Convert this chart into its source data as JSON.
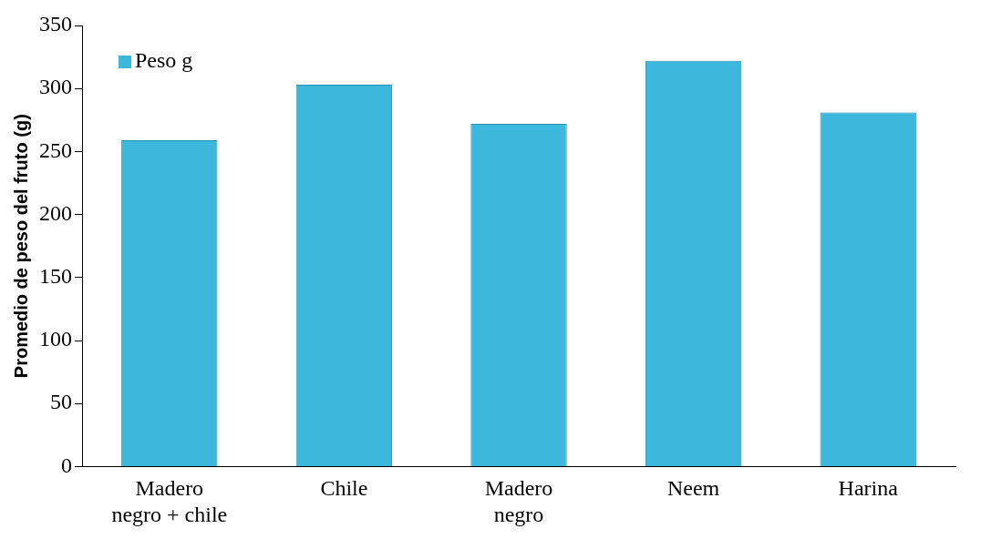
{
  "chart_data": {
    "type": "bar",
    "ylabel": "Promedio de peso del fruto (g)",
    "categories": [
      "Madero negro + chile",
      "Chile",
      "Madero negro",
      "Neem",
      "Harina"
    ],
    "series": [
      {
        "name": "Peso g",
        "color": "#3bb8dc",
        "values": [
          259,
          303,
          272,
          322,
          281
        ]
      }
    ],
    "ylim": [
      0,
      350
    ],
    "yticks": [
      0,
      50,
      100,
      150,
      200,
      250,
      300,
      350
    ],
    "grid": false,
    "legend": "top left"
  }
}
